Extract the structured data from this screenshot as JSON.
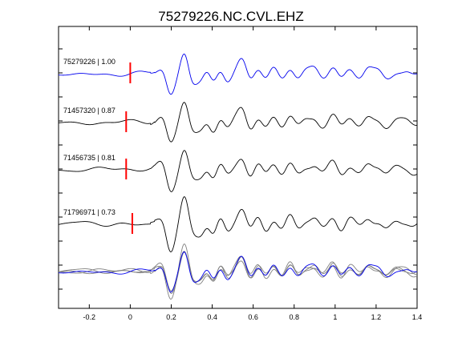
{
  "chart_data": {
    "type": "line",
    "title": "75279226.NC.CVL.EHZ",
    "xlabel": "",
    "ylabel": "",
    "xlim": [
      -0.35,
      1.4
    ],
    "xticks": [
      -0.2,
      0,
      0.2,
      0.4,
      0.6,
      0.8,
      1,
      1.2,
      1.4
    ],
    "xtick_labels": [
      "-0.2",
      "0",
      "0.2",
      "0.4",
      "0.6",
      "0.8",
      "1",
      "1.2",
      "1.4"
    ],
    "colors": {
      "reference": "#0000ee",
      "trace": "#000000",
      "overlay": "#808080",
      "pick": "#ff0000"
    },
    "traces": [
      {
        "label": "75279226 | 1.00",
        "id": "75279226",
        "correlation": 1.0,
        "pick_time": 0.0,
        "color": "#0000ee",
        "phase": 0.0,
        "amp": 1.0
      },
      {
        "label": "71457320 | 0.87",
        "id": "71457320",
        "correlation": 0.87,
        "pick_time": -0.02,
        "color": "#000000",
        "phase": 1.1,
        "amp": 1.0
      },
      {
        "label": "71456735 | 0.81",
        "id": "71456735",
        "correlation": 0.81,
        "pick_time": -0.02,
        "color": "#000000",
        "phase": 2.3,
        "amp": 1.0
      },
      {
        "label": "71796971 | 0.73",
        "id": "71796971",
        "correlation": 0.73,
        "pick_time": 0.01,
        "color": "#000000",
        "phase": 3.7,
        "amp": 1.15
      }
    ],
    "waveform": {
      "pulses": [
        {
          "t": 0.135,
          "a": 0.1,
          "w": 0.02
        },
        {
          "t": 0.165,
          "a": 0.3,
          "w": 0.02
        },
        {
          "t": 0.195,
          "a": -0.9,
          "w": 0.022
        },
        {
          "t": 0.235,
          "a": -0.15,
          "w": 0.02
        },
        {
          "t": 0.265,
          "a": 1.0,
          "w": 0.022
        },
        {
          "t": 0.3,
          "a": -0.45,
          "w": 0.022
        },
        {
          "t": 0.345,
          "a": -0.35,
          "w": 0.022
        },
        {
          "t": 0.375,
          "a": 0.2,
          "w": 0.02
        },
        {
          "t": 0.405,
          "a": -0.4,
          "w": 0.02
        },
        {
          "t": 0.44,
          "a": 0.3,
          "w": 0.02
        },
        {
          "t": 0.475,
          "a": -0.3,
          "w": 0.02
        },
        {
          "t": 0.5,
          "a": 0.05,
          "w": 0.02
        },
        {
          "t": 0.545,
          "a": 0.55,
          "w": 0.022
        },
        {
          "t": 0.585,
          "a": -0.3,
          "w": 0.02
        },
        {
          "t": 0.625,
          "a": 0.25,
          "w": 0.02
        },
        {
          "t": 0.66,
          "a": -0.25,
          "w": 0.02
        },
        {
          "t": 0.7,
          "a": 0.25,
          "w": 0.02
        },
        {
          "t": 0.74,
          "a": -0.2,
          "w": 0.02
        },
        {
          "t": 0.78,
          "a": 0.3,
          "w": 0.02
        },
        {
          "t": 0.82,
          "a": -0.2,
          "w": 0.02
        },
        {
          "t": 0.855,
          "a": 0.1,
          "w": 0.02
        },
        {
          "t": 0.9,
          "a": 0.2,
          "w": 0.02
        },
        {
          "t": 0.94,
          "a": -0.15,
          "w": 0.02
        },
        {
          "t": 0.99,
          "a": 0.3,
          "w": 0.02
        },
        {
          "t": 1.03,
          "a": -0.2,
          "w": 0.02
        },
        {
          "t": 1.07,
          "a": 0.2,
          "w": 0.02
        },
        {
          "t": 1.12,
          "a": -0.15,
          "w": 0.02
        },
        {
          "t": 1.16,
          "a": 0.2,
          "w": 0.02
        },
        {
          "t": 1.21,
          "a": 0.1,
          "w": 0.02
        },
        {
          "t": 1.25,
          "a": -0.15,
          "w": 0.02
        },
        {
          "t": 1.3,
          "a": 0.1,
          "w": 0.02
        },
        {
          "t": 1.35,
          "a": 0.05,
          "w": 0.02
        },
        {
          "t": 1.38,
          "a": -0.1,
          "w": 0.02
        }
      ]
    },
    "overlay": {
      "label": "",
      "traces": [
        "75279226",
        "71457320",
        "71456735",
        "71796971"
      ]
    },
    "grid": false,
    "legend": "none"
  }
}
